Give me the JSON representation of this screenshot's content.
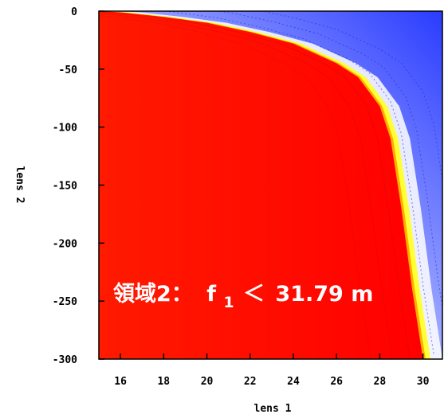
{
  "chart_data": {
    "type": "heatmap",
    "xlabel": "lens 1",
    "ylabel": "lens 2",
    "xlim": [
      15,
      30.9
    ],
    "ylim": [
      -300,
      0
    ],
    "x_ticks": [
      16,
      18,
      20,
      22,
      24,
      26,
      28,
      30
    ],
    "y_ticks": [
      0,
      -50,
      -100,
      -150,
      -200,
      -250,
      -300
    ],
    "grid": false,
    "colors": {
      "region_high": "#ff0000",
      "boundary": "#ffff00",
      "region_low": "#2a3cff",
      "background_light": "#ffffff"
    },
    "boundary_curve": {
      "x": [
        15.0,
        16.0,
        18.0,
        20.0,
        22.0,
        24.0,
        26.0,
        27.0,
        28.0,
        28.5,
        29.0,
        29.5,
        30.0
      ],
      "y": [
        0,
        -1,
        -5,
        -10,
        -18,
        -28,
        -45,
        -57,
        -82,
        -110,
        -170,
        -240,
        -300
      ]
    },
    "annotation": {
      "prefix": "領域2：",
      "symbol": "f",
      "subscript": "1",
      "relation": "＜",
      "value": "31.79 m"
    }
  }
}
